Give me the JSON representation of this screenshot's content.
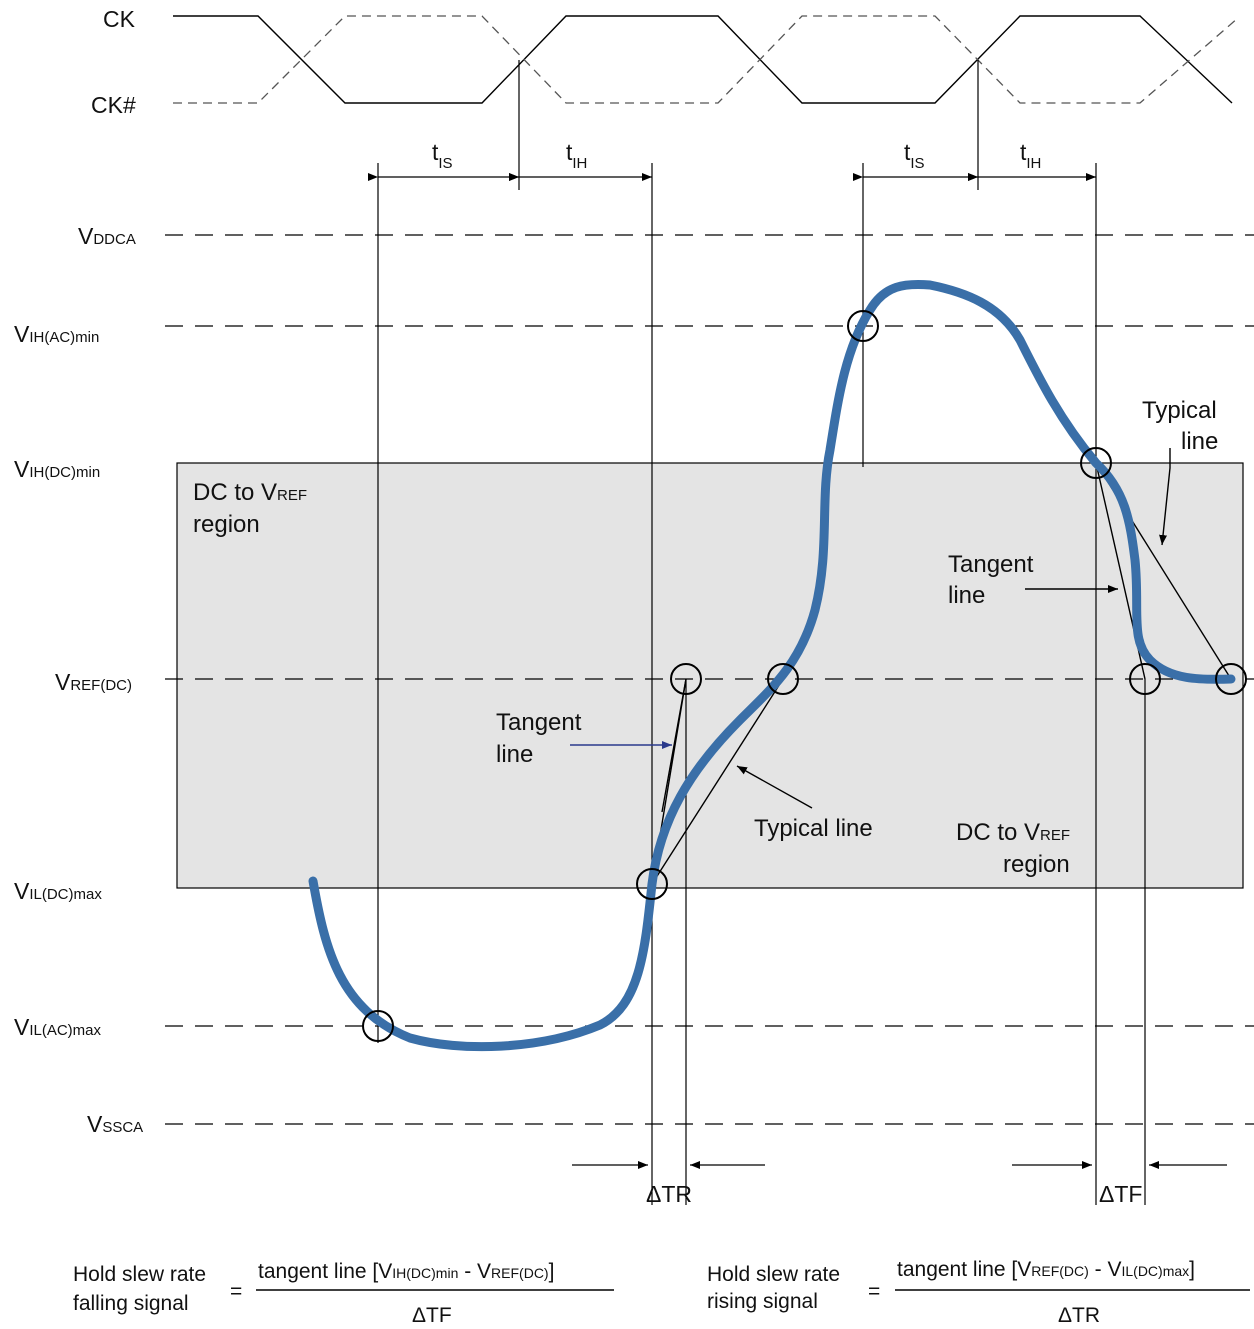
{
  "clock": {
    "ck": "CK",
    "ck_n": "CK#"
  },
  "timing": {
    "t": "t",
    "is_sub": "IS",
    "ih_sub": "IH"
  },
  "levels": {
    "vddca": {
      "main": "V",
      "sub": "DDCA"
    },
    "vih_ac": {
      "main": "V",
      "sub": "IH(AC)min"
    },
    "vih_dc": {
      "main": "V",
      "sub": "IH(DC)min"
    },
    "vref_dc": {
      "main": "V",
      "sub": "REF(DC)"
    },
    "vil_dc": {
      "main": "V",
      "sub": "IL(DC)max"
    },
    "vil_ac": {
      "main": "V",
      "sub": "IL(AC)max"
    },
    "vssca": {
      "main": "V",
      "sub": "SSCA"
    }
  },
  "region": {
    "line1_a": "DC to V",
    "line1_b": "REF",
    "line2": "region"
  },
  "annotations": {
    "tangent_1": "Tangent",
    "tangent_2": "line",
    "typical_line": "Typical line",
    "typical_1": "Typical",
    "typical_2": "line"
  },
  "deltas": {
    "tr": "ΔTR",
    "tf": "ΔTF"
  },
  "equations": {
    "left": {
      "name_1": "Hold slew rate",
      "name_2": "falling signal",
      "equals": "=",
      "num_a": "tangent line [V",
      "num_b": "IH(DC)min",
      "num_c": " - V",
      "num_d": "REF(DC)",
      "num_e": "]",
      "den": "ΔTF"
    },
    "right": {
      "name_1": "Hold slew rate",
      "name_2": "rising signal",
      "equals": "=",
      "num_a": "tangent line [V",
      "num_b": "REF(DC)",
      "num_c": " - V",
      "num_d": "IL(DC)max",
      "num_e": "]",
      "den": "ΔTR"
    }
  },
  "colors": {
    "signal": "#3a6fa8",
    "region_fill": "#e4e4e4",
    "arrow_blue": "#2a3a8c"
  }
}
